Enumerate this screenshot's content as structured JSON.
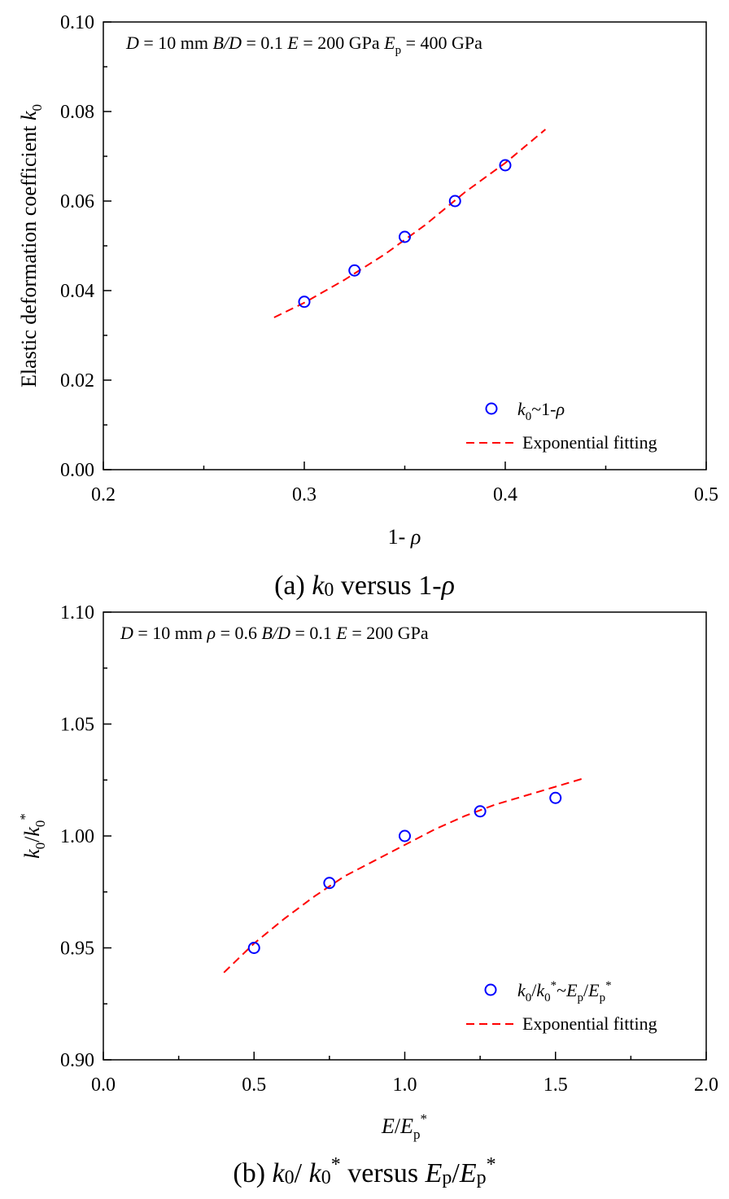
{
  "chart_data": [
    {
      "type": "scatter",
      "panel": "a",
      "caption": {
        "prefix": "(a) ",
        "k": "k",
        "k_sub": "0",
        "rest": " versus 1-",
        "rho": "ρ"
      },
      "annotation": {
        "D": "D",
        "D_val": " = 10 mm  ",
        "BD": "B/D",
        "BD_val": " = 0.1  ",
        "E": "E",
        "E_val": " = 200 GPa  ",
        "Ep": "E",
        "Ep_sub": "p",
        "Ep_val": " = 400 GPa"
      },
      "xlabel": {
        "text": "1- ",
        "sym": "ρ"
      },
      "ylabel": {
        "text": "Elastic deformation coefficient ",
        "sym": "k",
        "sub": "0"
      },
      "xlim": [
        0.2,
        0.5
      ],
      "ylim": [
        0.0,
        0.1
      ],
      "xticks": [
        0.2,
        0.3,
        0.4,
        0.5
      ],
      "xtick_labels": [
        "0.2",
        "0.3",
        "0.4",
        "0.5"
      ],
      "yticks": [
        0.0,
        0.02,
        0.04,
        0.06,
        0.08,
        0.1
      ],
      "ytick_labels": [
        "0.00",
        "0.02",
        "0.04",
        "0.06",
        "0.08",
        "0.10"
      ],
      "grid": false,
      "legend_position": "bottom-right",
      "series": [
        {
          "name": "k0~1-ρ",
          "legend": {
            "k": "k",
            "sub": "0",
            "rest": "~1-",
            "rho": "ρ"
          },
          "kind": "scatter",
          "marker": "open-circle",
          "color": "#0000ff",
          "x": [
            0.3,
            0.325,
            0.35,
            0.375,
            0.4
          ],
          "y": [
            0.0375,
            0.0445,
            0.052,
            0.06,
            0.068
          ]
        },
        {
          "name": "Exponential fitting",
          "legend": {
            "text": "Exponential fitting"
          },
          "kind": "line",
          "style": "dashed",
          "color": "#ff0000",
          "x": [
            0.285,
            0.3,
            0.32,
            0.34,
            0.36,
            0.38,
            0.4,
            0.42
          ],
          "y": [
            0.034,
            0.0373,
            0.0424,
            0.0481,
            0.0546,
            0.062,
            0.0685,
            0.076
          ]
        }
      ]
    },
    {
      "type": "scatter",
      "panel": "b",
      "caption": {
        "prefix": "(b) ",
        "k": "k",
        "k_sub": "0",
        "mid": "/ ",
        "k2": "k",
        "k2_sub": "0",
        "k2_sup": "*",
        "rest": " versus ",
        "Ep": "E",
        "Ep_sub": "p",
        "slash": "/",
        "Ep2": "E",
        "Ep2_sub": "p",
        "Ep2_sup": "*"
      },
      "annotation": {
        "D": "D",
        "D_val": " = 10 mm  ",
        "rho": "ρ",
        "rho_val": " = 0.6   ",
        "BD": "B/D",
        "BD_val": " = 0.1  ",
        "E": "E",
        "E_val": " = 200 GPa"
      },
      "xlabel": {
        "E": "E",
        "slash": "/",
        "Ep": "E",
        "sub": "p",
        "sup": "*"
      },
      "ylabel": {
        "k": "k",
        "sub": "0",
        "slash": "/",
        "k2": "k",
        "sub2": "0",
        "sup2": "*"
      },
      "xlim": [
        0.0,
        2.0
      ],
      "ylim": [
        0.9,
        1.1
      ],
      "xticks": [
        0.0,
        0.5,
        1.0,
        1.5,
        2.0
      ],
      "xtick_labels": [
        "0.0",
        "0.5",
        "1.0",
        "1.5",
        "2.0"
      ],
      "yticks": [
        0.9,
        0.95,
        1.0,
        1.05,
        1.1
      ],
      "ytick_labels": [
        "0.90",
        "0.95",
        "1.00",
        "1.05",
        "1.10"
      ],
      "grid": false,
      "legend_position": "bottom-right",
      "series": [
        {
          "name": "k0/k0*~Ep/Ep*",
          "legend": {
            "k": "k",
            "sub": "0",
            "slash": "/",
            "k2": "k",
            "sub2": "0",
            "sup2": "*",
            "tilde": "~",
            "E": "E",
            "Esub": "p",
            "slash2": "/",
            "E2": "E",
            "E2sub": "p",
            "E2sup": "*"
          },
          "kind": "scatter",
          "marker": "open-circle",
          "color": "#0000ff",
          "x": [
            0.5,
            0.75,
            1.0,
            1.25,
            1.5
          ],
          "y": [
            0.95,
            0.979,
            1.0,
            1.011,
            1.017
          ]
        },
        {
          "name": "Exponential fitting",
          "legend": {
            "text": "Exponential fitting"
          },
          "kind": "line",
          "style": "dashed",
          "color": "#ff0000",
          "x": [
            0.4,
            0.5,
            0.6,
            0.7,
            0.8,
            0.9,
            1.0,
            1.1,
            1.2,
            1.3,
            1.4,
            1.5,
            1.6
          ],
          "y": [
            0.939,
            0.952,
            0.963,
            0.973,
            0.982,
            0.989,
            0.996,
            1.003,
            1.009,
            1.014,
            1.018,
            1.022,
            1.026
          ]
        }
      ]
    }
  ]
}
